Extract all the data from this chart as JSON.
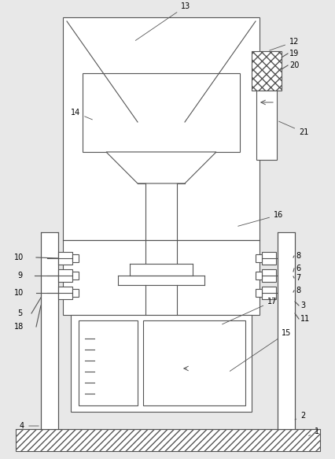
{
  "bg_color": "#e8e8e8",
  "line_color": "#555555",
  "lw": 0.8,
  "fig_width": 4.27,
  "fig_height": 5.83,
  "dpi": 100
}
